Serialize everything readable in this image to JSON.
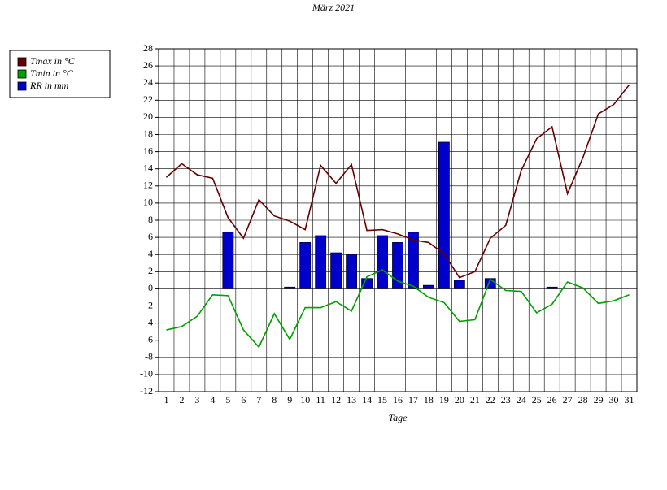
{
  "chart_data": {
    "type": "bar",
    "title": "März 2021",
    "x_label": "Tage",
    "categories": [
      1,
      2,
      3,
      4,
      5,
      6,
      7,
      8,
      9,
      10,
      11,
      12,
      13,
      14,
      15,
      16,
      17,
      18,
      19,
      20,
      21,
      22,
      23,
      24,
      25,
      26,
      27,
      28,
      29,
      30,
      31
    ],
    "series": [
      {
        "name": "Tmax in °C",
        "color": "#660000",
        "type": "line",
        "values": [
          13.0,
          14.6,
          13.3,
          12.9,
          8.3,
          5.9,
          10.4,
          8.5,
          7.9,
          6.9,
          14.4,
          12.3,
          14.5,
          6.8,
          6.9,
          6.4,
          5.7,
          5.4,
          4.1,
          1.3,
          2.0,
          5.9,
          7.4,
          13.8,
          17.5,
          18.9,
          11.1,
          15.3,
          20.4,
          21.5,
          23.8
        ]
      },
      {
        "name": "Tmin in °C",
        "color": "#00a000",
        "type": "line",
        "values": [
          -4.8,
          -4.4,
          -3.2,
          -0.7,
          -0.8,
          -4.8,
          -6.8,
          -2.9,
          -5.9,
          -2.2,
          -2.2,
          -1.5,
          -2.6,
          1.4,
          2.2,
          0.9,
          0.3,
          -1.0,
          -1.6,
          -3.8,
          -3.6,
          1.1,
          -0.2,
          -0.3,
          -2.8,
          -1.8,
          0.8,
          0.1,
          -1.7,
          -1.4,
          -0.7
        ]
      },
      {
        "name": "RR in mm",
        "color": "#0000cc",
        "type": "bar",
        "values": [
          0,
          0,
          0,
          0,
          6.6,
          0,
          0,
          0,
          0.2,
          5.4,
          6.2,
          4.2,
          4.0,
          1.2,
          6.2,
          5.4,
          6.6,
          0.4,
          17.1,
          1.0,
          0,
          1.2,
          0,
          0,
          0,
          0.2,
          0,
          0,
          0,
          0,
          0
        ]
      }
    ],
    "ylim": [
      -12,
      28
    ],
    "yticks": [
      -12,
      -10,
      -8,
      -6,
      -4,
      -2,
      0,
      2,
      4,
      6,
      8,
      10,
      12,
      14,
      16,
      18,
      20,
      22,
      24,
      26,
      28
    ],
    "grid": true,
    "legend": "top-left"
  }
}
